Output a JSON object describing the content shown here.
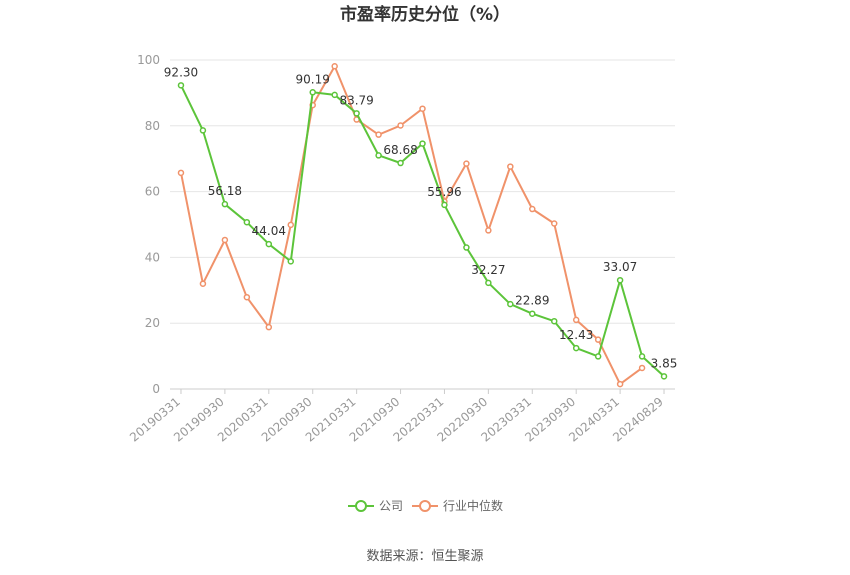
{
  "chart_data": {
    "type": "line",
    "title": "市盈率历史分位（%）",
    "ylim": [
      0,
      100
    ],
    "yticks": [
      0,
      20,
      40,
      60,
      80,
      100
    ],
    "x": [
      "20190331",
      "20190630",
      "20190930",
      "20191231",
      "20200331",
      "20200630",
      "20200930",
      "20201231",
      "20210331",
      "20210630",
      "20210930",
      "20211231",
      "20220331",
      "20220630",
      "20220930",
      "20221231",
      "20230331",
      "20230630",
      "20230930",
      "20231231",
      "20240331",
      "20240630",
      "20240829"
    ],
    "xtick_labels": [
      "20190331",
      "20190930",
      "20200331",
      "20200930",
      "20210331",
      "20210930",
      "20220331",
      "20220930",
      "20230331",
      "20230930",
      "20240331",
      "20240829"
    ],
    "series": [
      {
        "name": "公司",
        "color": "#5cc43a",
        "values": [
          92.3,
          78.6,
          56.18,
          50.7,
          44.04,
          38.8,
          90.19,
          89.4,
          83.79,
          71.0,
          68.68,
          74.6,
          55.96,
          43.0,
          32.27,
          25.8,
          22.89,
          20.6,
          12.43,
          9.9,
          33.07,
          9.9,
          3.85
        ],
        "labels": [
          "92.30",
          "",
          "56.18",
          "",
          "44.04",
          "",
          "90.19",
          "",
          "83.79",
          "",
          "68.68",
          "",
          "55.96",
          "",
          "32.27",
          "",
          "22.89",
          "",
          "12.43",
          "",
          "33.07",
          "",
          "3.85"
        ]
      },
      {
        "name": "行业中位数",
        "color": "#f0926a",
        "values": [
          65.7,
          32.0,
          45.3,
          27.9,
          18.8,
          49.9,
          86.3,
          98.1,
          81.9,
          77.3,
          80.1,
          85.2,
          57.0,
          68.5,
          48.2,
          67.6,
          54.7,
          50.3,
          21.0,
          15.0,
          1.5,
          6.4,
          null
        ]
      }
    ],
    "legend_position": "bottom-center",
    "grid": true,
    "source": "数据来源：恒生聚源"
  }
}
